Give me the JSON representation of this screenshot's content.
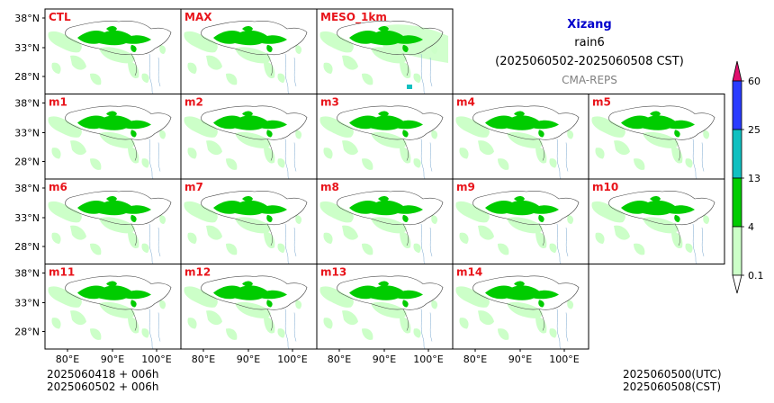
{
  "header": {
    "region": "Xizang",
    "variable": "rain6",
    "period": "(2025060502-2025060508 CST)",
    "model": "CMA-REPS"
  },
  "panels": [
    [
      "CTL",
      "MAX",
      "MESO_1km"
    ],
    [
      "m1",
      "m2",
      "m3",
      "m4",
      "m5"
    ],
    [
      "m6",
      "m7",
      "m8",
      "m9",
      "m10"
    ],
    [
      "m11",
      "m12",
      "m13",
      "m14"
    ]
  ],
  "axes": {
    "lat_labels": [
      "38°N",
      "33°N",
      "28°N"
    ],
    "lon_labels": [
      "80°E",
      "90°E",
      "100°E"
    ]
  },
  "colorbar": {
    "levels": [
      "0.1",
      "4",
      "13",
      "25",
      "60"
    ],
    "colors": [
      "#ccffc8",
      "#00cc00",
      "#10c0c0",
      "#2a3cff"
    ],
    "extend_colors": {
      "under": "#ffffff",
      "over": "#e0106e"
    }
  },
  "footer": {
    "init_utc": "2025060418  +  006h",
    "init_cst": "2025060502  +  006h",
    "valid_utc": "2025060500(UTC)",
    "valid_cst": "2025060508(CST)"
  },
  "colors": {
    "title_blue": "#0000cc",
    "model_gray": "#808080",
    "panel_label_red": "#e8141b"
  }
}
